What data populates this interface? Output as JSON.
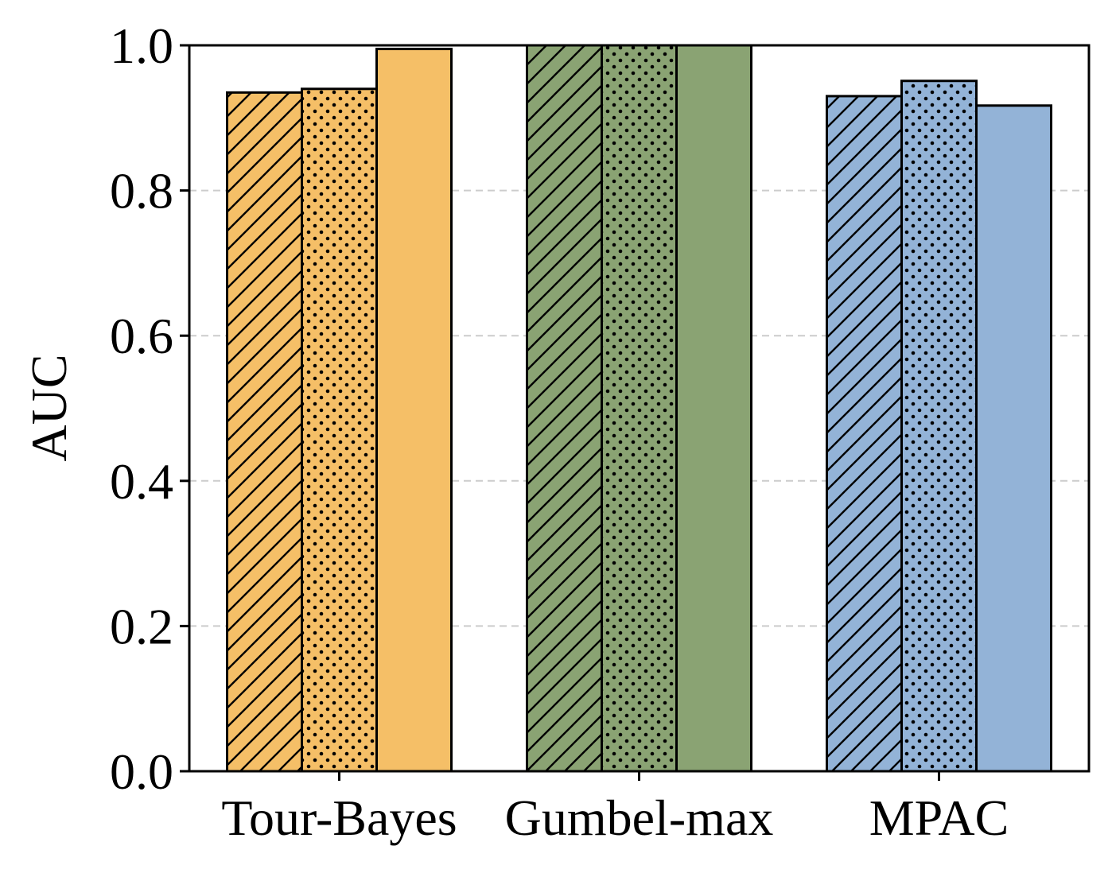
{
  "chart_data": {
    "type": "bar",
    "categories": [
      "Tour-Bayes",
      "Gumbel-max",
      "MPAC"
    ],
    "series": [
      {
        "pattern": "hatch",
        "values": [
          0.935,
          1.0,
          0.93
        ]
      },
      {
        "pattern": "dots",
        "values": [
          0.94,
          1.0,
          0.951
        ]
      },
      {
        "pattern": "solid",
        "values": [
          0.995,
          1.0,
          0.917
        ]
      }
    ],
    "category_colors": [
      "#f5bf67",
      "#8aa373",
      "#93b3d7"
    ],
    "ylabel": "AUC",
    "xlabel": "",
    "ylim": [
      0,
      1.0
    ],
    "yticks": [
      "0.0",
      "0.2",
      "0.4",
      "0.6",
      "0.8",
      "1.0"
    ],
    "grid": "y-dashed",
    "legend": "none"
  }
}
